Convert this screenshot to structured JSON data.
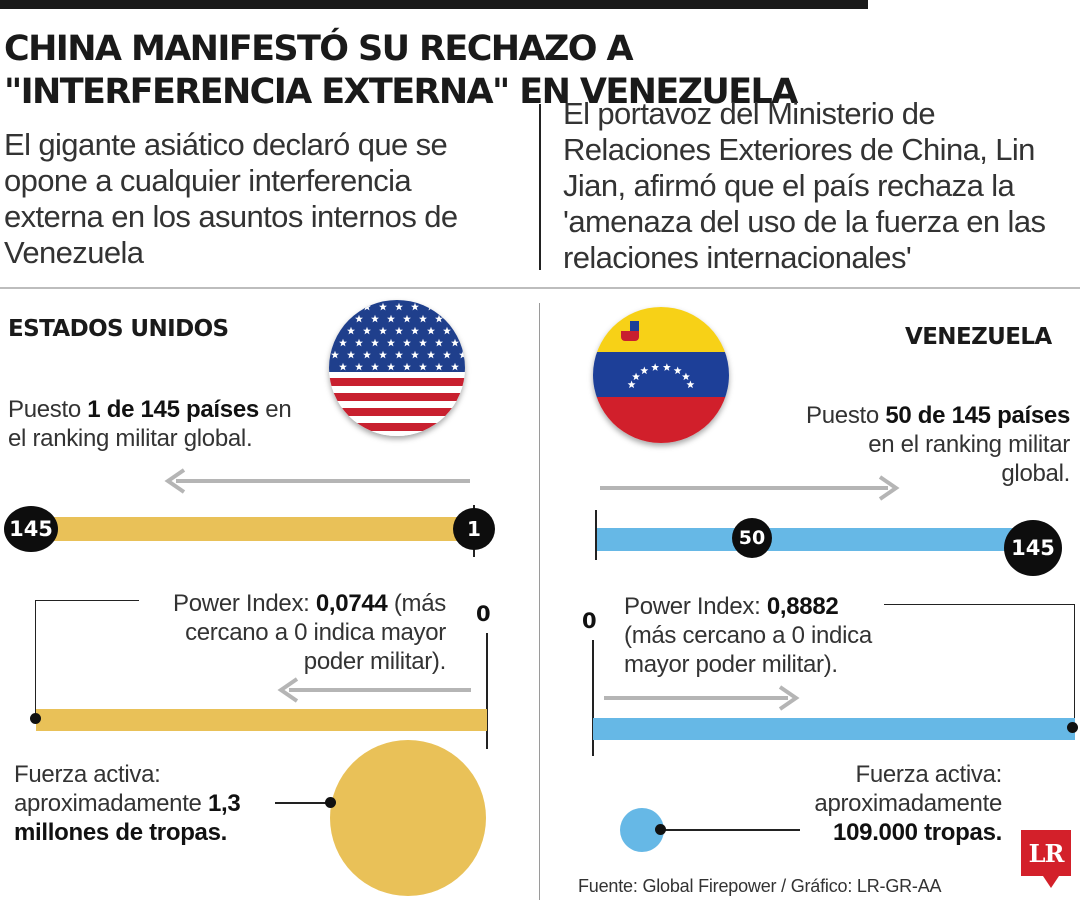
{
  "headline": {
    "title": "China manifestó su rechazo a \"interferencia externa\" en Venezuela",
    "lede_left": "El gigante asiático declaró que se opone a cualquier interferencia externa en los asuntos internos de Venezuela",
    "lede_right": "El portavoz del Ministerio de Relaciones Exteriores de China, Lin Jian, afirmó que el país rechaza la 'amenaza del uso de la fuerza en las relaciones internacionales'"
  },
  "usa": {
    "name": "ESTADOS UNIDOS",
    "flag_icon": "us-flag-icon",
    "rank_pre": "Puesto ",
    "rank_bold": "1 de 145 países",
    "rank_post": " en el ranking militar global.",
    "rank_value": 1,
    "rank_start_label": "145",
    "rank_end_label": "1",
    "pi_pre": "Power Index: ",
    "pi_value": "0,0744",
    "pi_post": " (más cercano a 0 indica mayor poder militar).",
    "pi_zero": "0",
    "force_pre": "Fuerza activa: aproximadamente ",
    "force_bold": "1,3 millones de tropas."
  },
  "venezuela": {
    "name": "VENEZUELA",
    "flag_icon": "venezuela-flag-icon",
    "rank_pre": "Puesto ",
    "rank_bold": "50 de 145 países",
    "rank_post": " en el ranking militar global.",
    "rank_value": 50,
    "rank_mid_label": "50",
    "rank_end_label": "145",
    "pi_pre": "Power Index: ",
    "pi_value": "0,8882",
    "pi_post": " (más cercano a 0 indica mayor poder militar).",
    "pi_zero": "0",
    "force_pre": "Fuerza activa: aproximadamente ",
    "force_bold": "109.000 tropas."
  },
  "colors": {
    "usa_accent": "#e9c158",
    "venezuela_accent": "#66b8e6",
    "arrow": "#b5b5b5",
    "brand": "#d3202a"
  },
  "footer": {
    "source": "Fuente: Global Firepower / Gráfico: LR-GR-AA",
    "logo_text": "LR"
  }
}
